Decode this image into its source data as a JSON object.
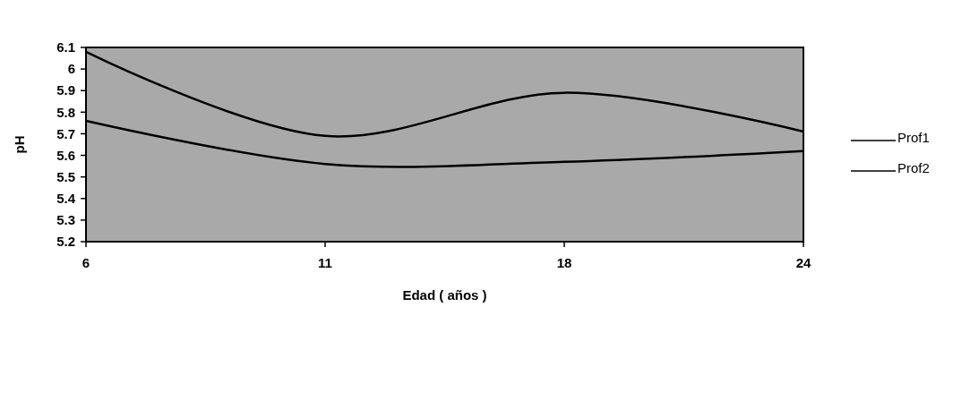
{
  "chart_data": {
    "type": "line",
    "xlabel": "Edad ( años )",
    "ylabel": "pH",
    "categories": [
      "6",
      "11",
      "18",
      "24"
    ],
    "series": [
      {
        "name": "Prof1",
        "color": "#000000",
        "values": [
          6.08,
          5.69,
          5.89,
          5.71
        ]
      },
      {
        "name": "Prof2",
        "color": "#000000",
        "values": [
          5.76,
          5.56,
          5.57,
          5.62
        ]
      }
    ],
    "ylim": [
      5.2,
      6.1
    ],
    "yticks": [
      5.2,
      5.3,
      5.4,
      5.5,
      5.6,
      5.7,
      5.8,
      5.9,
      6,
      6.1
    ],
    "grid": false,
    "legend": "right",
    "marker": "none",
    "line_style": "solid"
  }
}
